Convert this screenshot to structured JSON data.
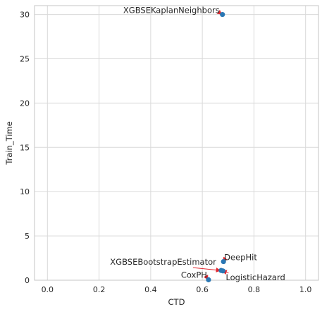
{
  "chart_data": {
    "type": "scatter",
    "title": "",
    "xlabel": "CTD",
    "ylabel": "Train_Time",
    "xlim": [
      -0.05,
      1.05
    ],
    "ylim": [
      0,
      31
    ],
    "xticks": [
      0.0,
      0.2,
      0.4,
      0.6,
      0.8,
      1.0
    ],
    "xtick_labels": [
      "0.0",
      "0.2",
      "0.4",
      "0.6",
      "0.8",
      "1.0"
    ],
    "yticks": [
      0,
      5,
      10,
      15,
      20,
      25,
      30
    ],
    "ytick_labels": [
      "0",
      "5",
      "10",
      "15",
      "20",
      "25",
      "30"
    ],
    "grid": true,
    "points": [
      {
        "label": "XGBSEKaplanNeighbors",
        "x": 0.678,
        "y": 30.0
      },
      {
        "label": "DeepHit",
        "x": 0.682,
        "y": 2.1
      },
      {
        "label": "XGBSEBootstrapEstimator",
        "x": 0.673,
        "y": 1.1
      },
      {
        "label": "LogisticHazard",
        "x": 0.68,
        "y": 1.05
      },
      {
        "label": "CoxPH",
        "x": 0.624,
        "y": 0.05
      }
    ],
    "colors": {
      "marker": "#2a77b4",
      "arrow": "#e3262e",
      "grid": "#d9d9d9",
      "axis": "#c4c4c4",
      "text": "#262626"
    }
  }
}
